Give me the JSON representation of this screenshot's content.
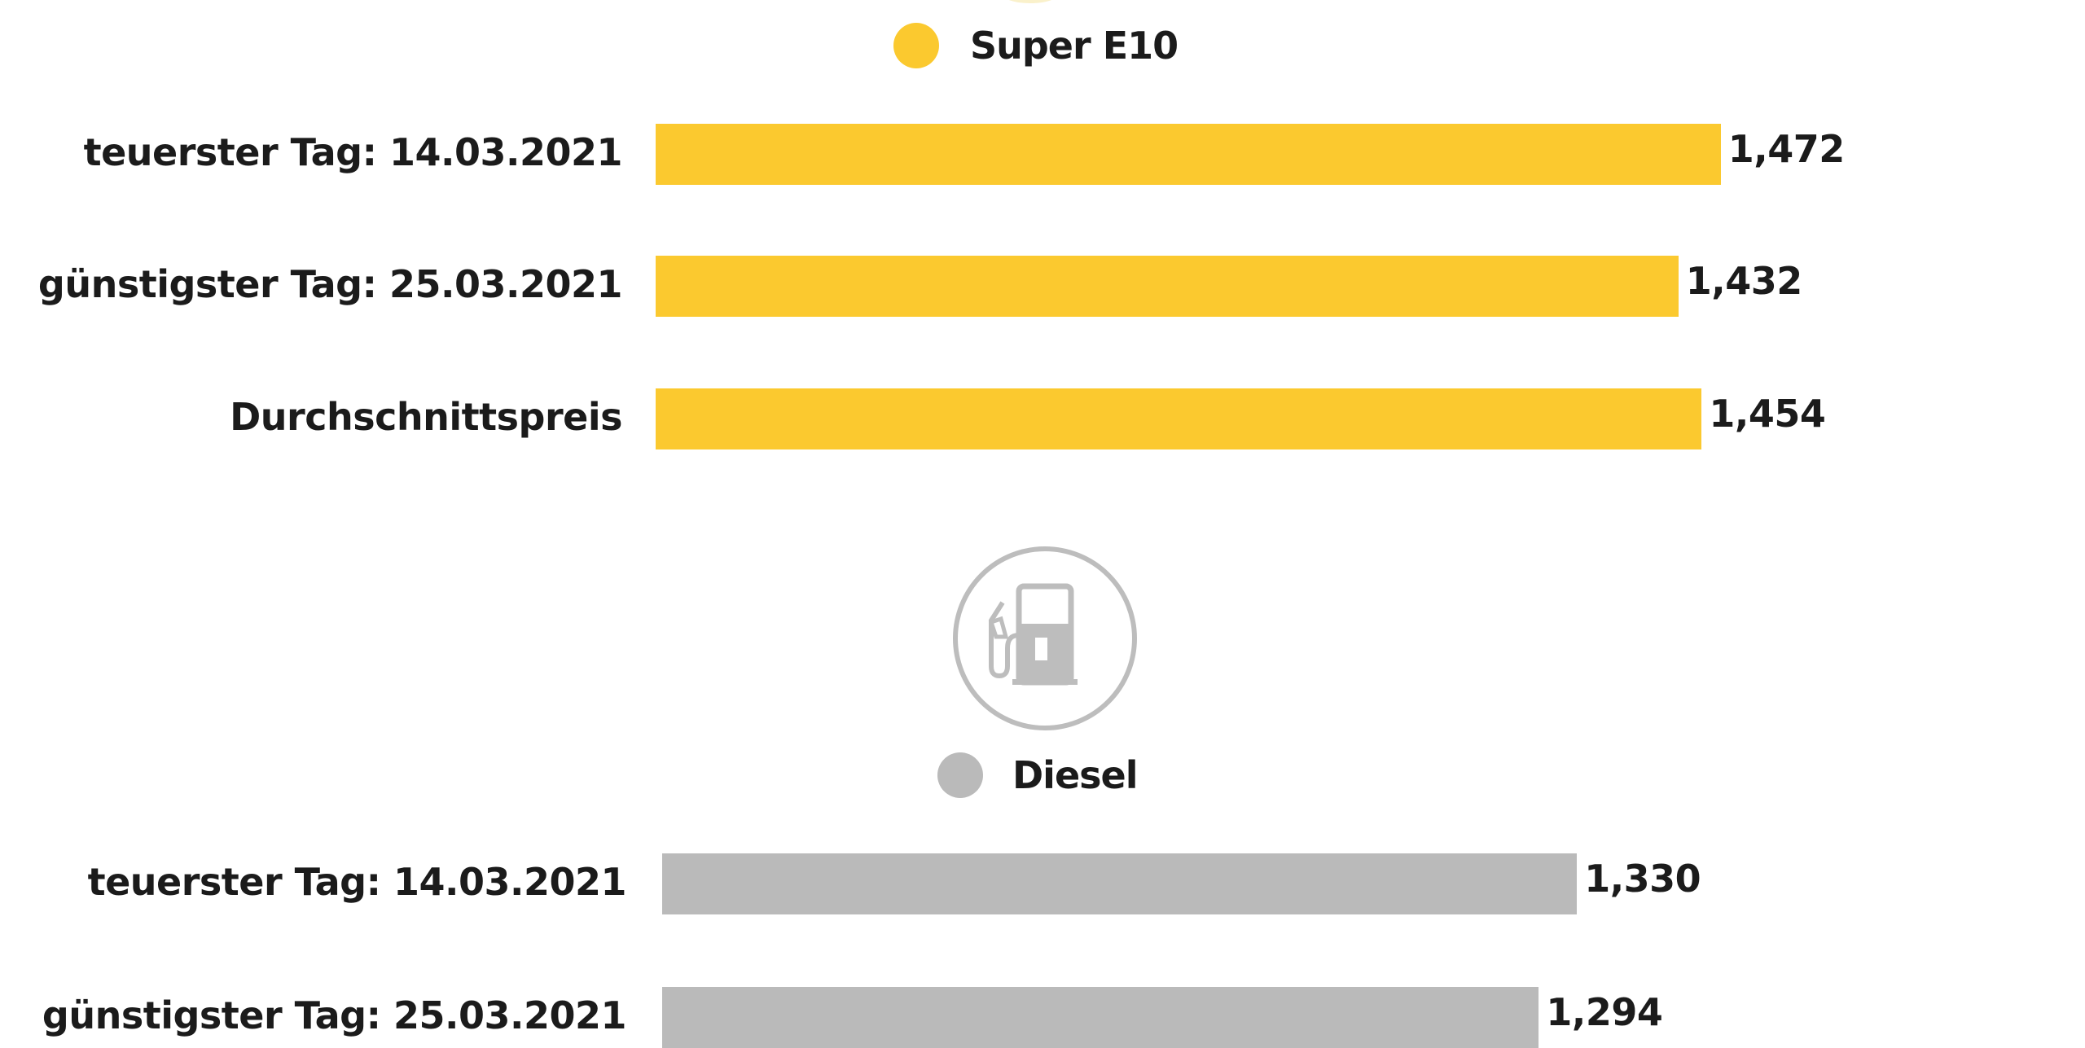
{
  "colors": {
    "super_e10": "#fbc92f",
    "diesel": "#bababa",
    "icon": "#bdbdbd"
  },
  "icons": {
    "fuel_pump": "fuel-pump-icon"
  },
  "chart_data": [
    {
      "type": "bar",
      "orientation": "horizontal",
      "title": "Super E10",
      "categories": [
        "teuerster Tag: 14.03.2021",
        "günstigster Tag: 25.03.2021",
        "Durchschnittspreis"
      ],
      "values": [
        1.472,
        1.432,
        1.454
      ],
      "value_labels": [
        "1,472",
        "1,432",
        "1,454"
      ],
      "color": "#fbc92f"
    },
    {
      "type": "bar",
      "orientation": "horizontal",
      "title": "Diesel",
      "categories": [
        "teuerster Tag: 14.03.2021",
        "günstigster Tag: 25.03.2021"
      ],
      "values": [
        1.33,
        1.294
      ],
      "value_labels": [
        "1,330",
        "1,294"
      ],
      "color": "#bababa"
    }
  ]
}
